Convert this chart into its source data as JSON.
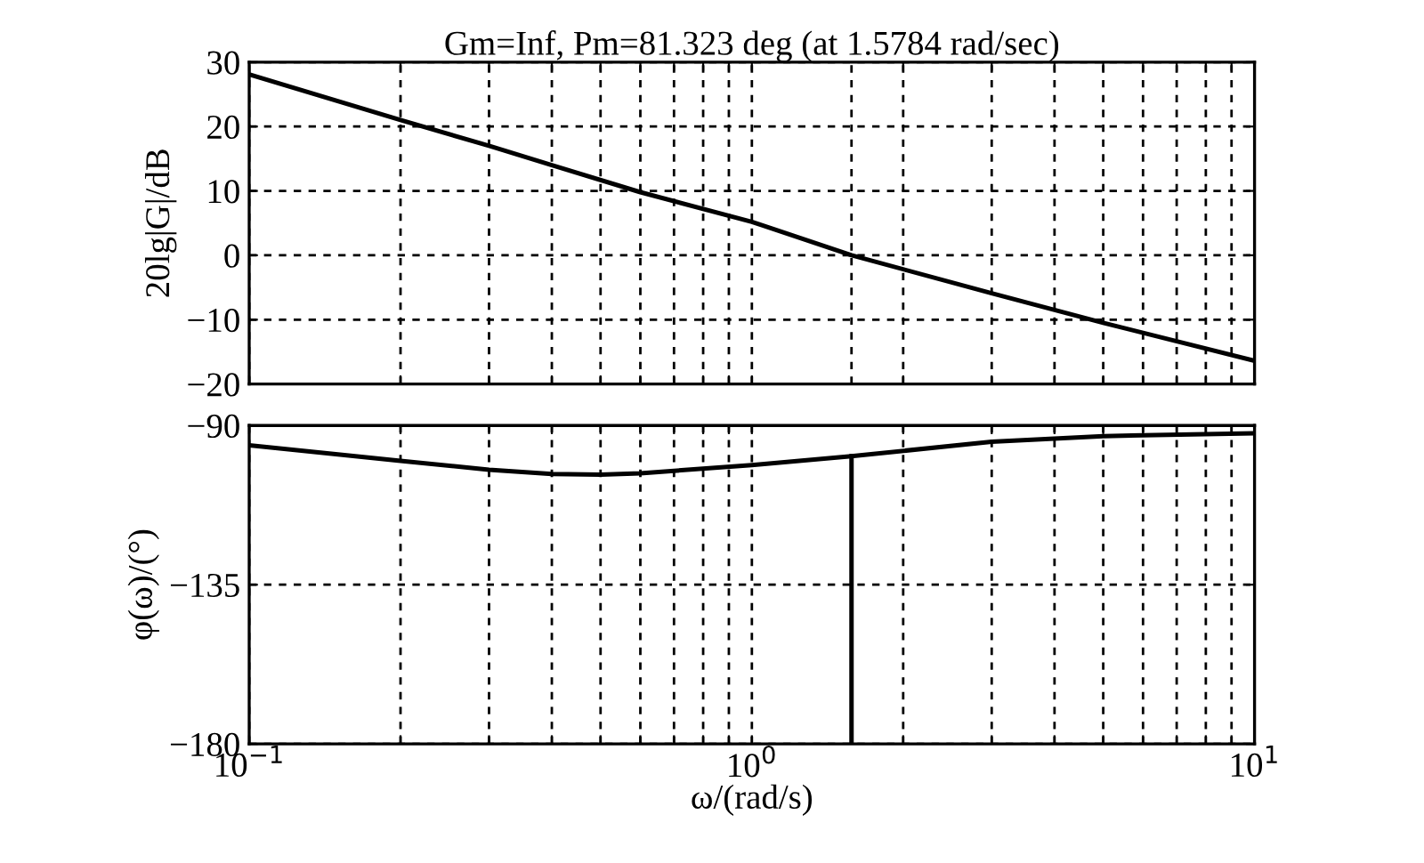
{
  "chart_data": [
    {
      "type": "line",
      "title": "Gm=Inf, Pm=81.323 deg (at 1.5784 rad/sec)",
      "ylabel": "20lg|G|/dB",
      "log": "x",
      "grid": true,
      "tick_labels": "y",
      "line_style": "solid",
      "marker": "none",
      "x": [
        0.1,
        0.2,
        0.3,
        0.4,
        0.6,
        1,
        1.5784,
        3,
        5,
        10
      ],
      "series": [
        {
          "color": "#000000",
          "values": [
            28.1,
            21,
            17,
            14,
            9.8,
            5.2,
            0,
            -5.9,
            -10.5,
            -16.4
          ]
        }
      ],
      "xlim": [
        0.1,
        10
      ],
      "xticks": [
        {
          "value": 0.1,
          "label": null
        },
        {
          "value": 0.2,
          "label": null
        },
        {
          "value": 0.3,
          "label": null
        },
        {
          "value": 0.4,
          "label": null
        },
        {
          "value": 0.5,
          "label": null
        },
        {
          "value": 0.6,
          "label": null
        },
        {
          "value": 0.7,
          "label": null
        },
        {
          "value": 0.8,
          "label": null
        },
        {
          "value": 0.9,
          "label": null
        },
        {
          "value": 1,
          "label": null
        },
        {
          "value": 2,
          "label": null
        },
        {
          "value": 3,
          "label": null
        },
        {
          "value": 4,
          "label": null
        },
        {
          "value": 5,
          "label": null
        },
        {
          "value": 6,
          "label": null
        },
        {
          "value": 7,
          "label": null
        },
        {
          "value": 8,
          "label": null
        },
        {
          "value": 9,
          "label": null
        },
        {
          "value": 10,
          "label": null
        }
      ],
      "ylim": [
        -20,
        30
      ],
      "yticks": [
        {
          "value": -20,
          "label": "−20"
        },
        {
          "value": -10,
          "label": "−10"
        },
        0,
        10,
        20,
        30
      ],
      "ref_lines": [
        {
          "axis": "x",
          "value": 1.5784,
          "label": null,
          "color": "#000000",
          "line_style": "dashed"
        }
      ]
    },
    {
      "type": "line",
      "xlabel": "ω/(rad/s)",
      "ylabel": "φ(ω)/(°)",
      "log": "x",
      "grid": true,
      "line_style": "solid",
      "marker": "none",
      "x": [
        0.1,
        0.2,
        0.3,
        0.4,
        0.5,
        0.6,
        1,
        1.5784,
        3,
        5,
        10
      ],
      "series": [
        {
          "color": "#000000",
          "values": [
            -95.6,
            -100,
            -102.5,
            -103.7,
            -103.9,
            -103.5,
            -101.2,
            -98.677,
            -94.6,
            -93,
            -92.2
          ]
        },
        {
          "color": "#000000",
          "x": [
            1.5784,
            1.5784
          ],
          "values": [
            -180,
            -98.677
          ]
        }
      ],
      "xlim": [
        0.1,
        10
      ],
      "xticks": [
        {
          "value": 0.1,
          "label": "10$^{−1}$"
        },
        {
          "value": 0.2,
          "label": null
        },
        {
          "value": 0.3,
          "label": null
        },
        {
          "value": 0.4,
          "label": null
        },
        {
          "value": 0.5,
          "label": null
        },
        {
          "value": 0.6,
          "label": null
        },
        {
          "value": 0.7,
          "label": null
        },
        {
          "value": 0.8,
          "label": null
        },
        {
          "value": 0.9,
          "label": null
        },
        {
          "value": 1,
          "label": "10$^{0}$"
        },
        {
          "value": 2,
          "label": null
        },
        {
          "value": 3,
          "label": null
        },
        {
          "value": 4,
          "label": null
        },
        {
          "value": 5,
          "label": null
        },
        {
          "value": 6,
          "label": null
        },
        {
          "value": 7,
          "label": null
        },
        {
          "value": 8,
          "label": null
        },
        {
          "value": 9,
          "label": null
        },
        {
          "value": 10,
          "label": "10$^{1}$"
        }
      ],
      "ylim": [
        -180,
        -90
      ],
      "yticks": [
        {
          "value": -180,
          "label": "−180"
        },
        {
          "value": -135,
          "label": "−135"
        },
        {
          "value": -90,
          "label": "−90"
        }
      ]
    }
  ]
}
